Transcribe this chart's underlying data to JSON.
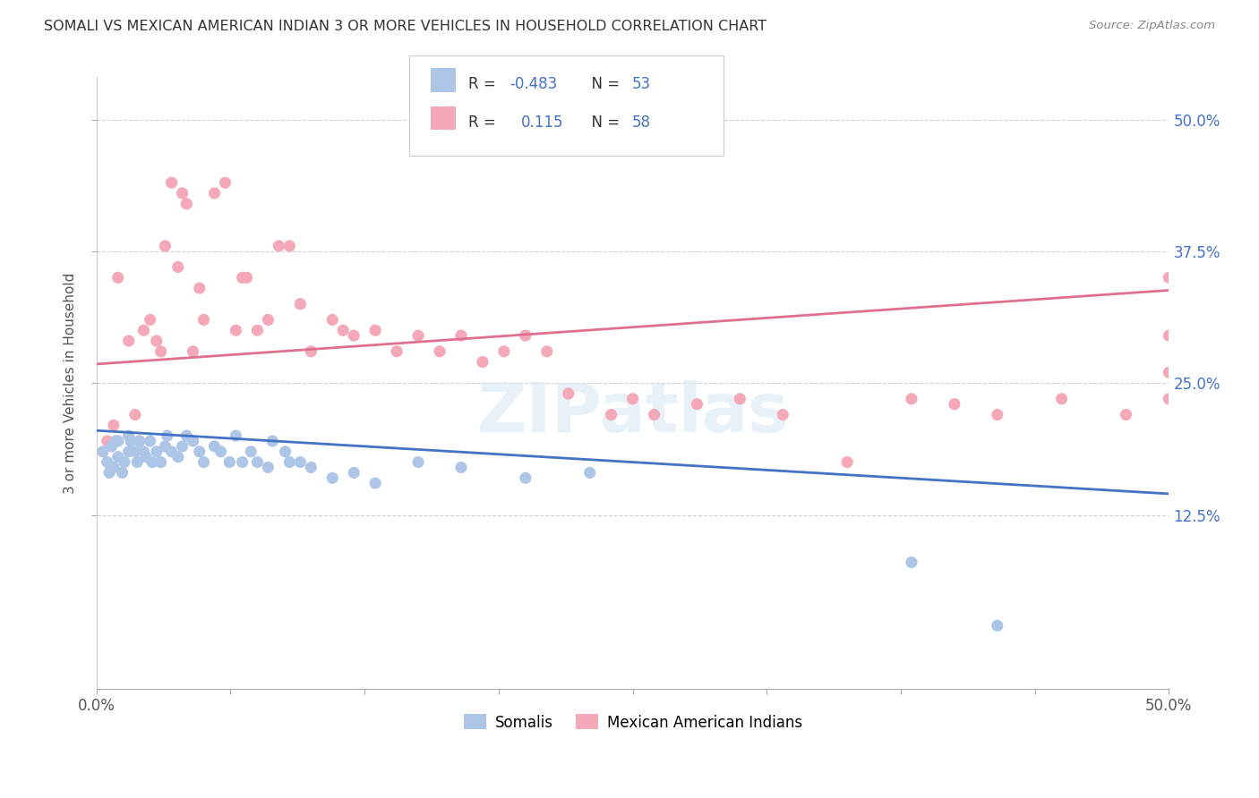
{
  "title": "SOMALI VS MEXICAN AMERICAN INDIAN 3 OR MORE VEHICLES IN HOUSEHOLD CORRELATION CHART",
  "source": "Source: ZipAtlas.com",
  "ylabel": "3 or more Vehicles in Household",
  "ytick_labels": [
    "12.5%",
    "25.0%",
    "37.5%",
    "50.0%"
  ],
  "ytick_values": [
    0.125,
    0.25,
    0.375,
    0.5
  ],
  "xlim": [
    0.0,
    0.5
  ],
  "ylim": [
    -0.04,
    0.54
  ],
  "somali_R": -0.483,
  "somali_N": 53,
  "mexican_R": 0.115,
  "mexican_N": 58,
  "somali_color": "#adc6e8",
  "mexican_color": "#f4a8b8",
  "somali_line_color": "#4472c4",
  "mexican_line_color": "#e07090",
  "watermark_text": "ZIPatlas",
  "legend_label_somali": "Somalis",
  "legend_label_mexican": "Mexican American Indians",
  "somali_line_x0": 0.0,
  "somali_line_y0": 0.205,
  "somali_line_x1": 0.5,
  "somali_line_y1": 0.145,
  "mexican_line_x0": 0.0,
  "mexican_line_y0": 0.268,
  "mexican_line_x1": 0.5,
  "mexican_line_y1": 0.338,
  "somali_x": [
    0.003,
    0.005,
    0.006,
    0.007,
    0.008,
    0.009,
    0.01,
    0.01,
    0.012,
    0.013,
    0.015,
    0.015,
    0.016,
    0.018,
    0.019,
    0.02,
    0.022,
    0.023,
    0.025,
    0.026,
    0.028,
    0.03,
    0.032,
    0.033,
    0.035,
    0.038,
    0.04,
    0.042,
    0.045,
    0.048,
    0.05,
    0.055,
    0.058,
    0.062,
    0.065,
    0.068,
    0.072,
    0.075,
    0.08,
    0.082,
    0.088,
    0.09,
    0.095,
    0.1,
    0.11,
    0.12,
    0.13,
    0.15,
    0.17,
    0.2,
    0.23,
    0.38,
    0.42
  ],
  "somali_y": [
    0.185,
    0.175,
    0.165,
    0.19,
    0.17,
    0.195,
    0.18,
    0.195,
    0.165,
    0.175,
    0.185,
    0.2,
    0.195,
    0.185,
    0.175,
    0.195,
    0.185,
    0.18,
    0.195,
    0.175,
    0.185,
    0.175,
    0.19,
    0.2,
    0.185,
    0.18,
    0.19,
    0.2,
    0.195,
    0.185,
    0.175,
    0.19,
    0.185,
    0.175,
    0.2,
    0.175,
    0.185,
    0.175,
    0.17,
    0.195,
    0.185,
    0.175,
    0.175,
    0.17,
    0.16,
    0.165,
    0.155,
    0.175,
    0.17,
    0.16,
    0.165,
    0.08,
    0.02
  ],
  "mexican_x": [
    0.005,
    0.008,
    0.01,
    0.015,
    0.018,
    0.02,
    0.022,
    0.025,
    0.028,
    0.03,
    0.032,
    0.035,
    0.038,
    0.04,
    0.042,
    0.045,
    0.048,
    0.05,
    0.055,
    0.06,
    0.065,
    0.068,
    0.07,
    0.075,
    0.08,
    0.085,
    0.09,
    0.095,
    0.1,
    0.11,
    0.115,
    0.12,
    0.13,
    0.14,
    0.15,
    0.16,
    0.17,
    0.18,
    0.19,
    0.2,
    0.21,
    0.22,
    0.24,
    0.25,
    0.26,
    0.28,
    0.3,
    0.32,
    0.35,
    0.38,
    0.4,
    0.42,
    0.45,
    0.48,
    0.5,
    0.5,
    0.5,
    0.5
  ],
  "mexican_y": [
    0.195,
    0.21,
    0.35,
    0.29,
    0.22,
    0.195,
    0.3,
    0.31,
    0.29,
    0.28,
    0.38,
    0.44,
    0.36,
    0.43,
    0.42,
    0.28,
    0.34,
    0.31,
    0.43,
    0.44,
    0.3,
    0.35,
    0.35,
    0.3,
    0.31,
    0.38,
    0.38,
    0.325,
    0.28,
    0.31,
    0.3,
    0.295,
    0.3,
    0.28,
    0.295,
    0.28,
    0.295,
    0.27,
    0.28,
    0.295,
    0.28,
    0.24,
    0.22,
    0.235,
    0.22,
    0.23,
    0.235,
    0.22,
    0.175,
    0.235,
    0.23,
    0.22,
    0.235,
    0.22,
    0.35,
    0.295,
    0.26,
    0.235
  ]
}
